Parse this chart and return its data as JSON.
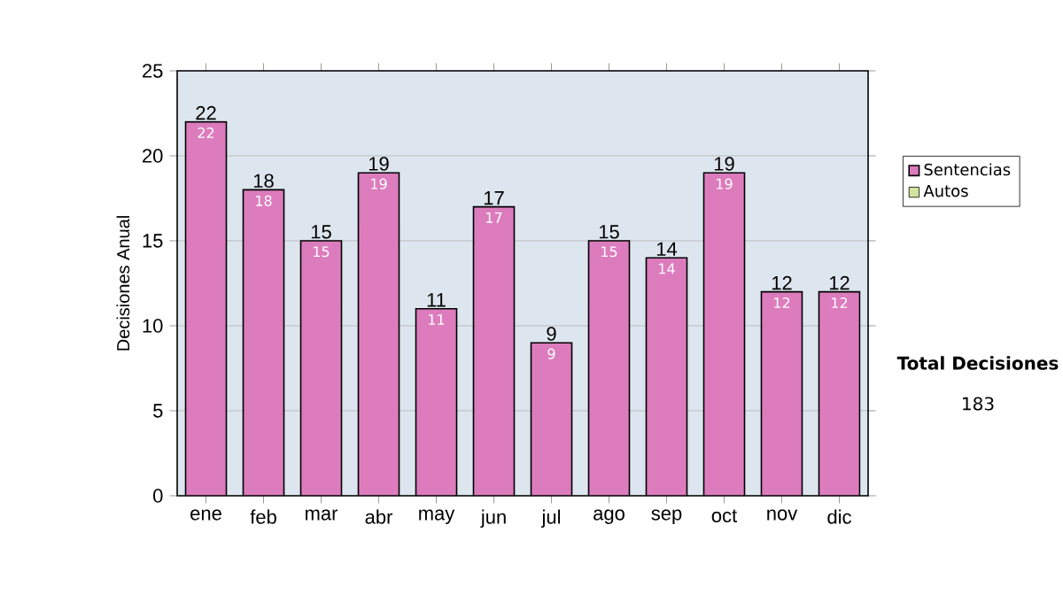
{
  "chart_data": {
    "type": "bar",
    "ylabel": "Decisiones Anual",
    "categories": [
      "ene",
      "feb",
      "mar",
      "abr",
      "may",
      "jun",
      "jul",
      "ago",
      "sep",
      "oct",
      "nov",
      "dic"
    ],
    "series": [
      {
        "name": "Sentencias",
        "color": "#dc7cbd",
        "values": [
          22,
          18,
          15,
          19,
          11,
          17,
          9,
          15,
          14,
          19,
          12,
          12
        ]
      },
      {
        "name": "Autos",
        "color": "#d2e3a0",
        "values": [
          null,
          null,
          null,
          null,
          null,
          null,
          null,
          null,
          null,
          null,
          null,
          null
        ]
      }
    ],
    "ylim": [
      0,
      25
    ],
    "yticks": [
      0,
      5,
      10,
      15,
      20,
      25
    ],
    "grid": "y",
    "legend": "right",
    "data_labels": true,
    "annotations": [
      "Total Decisiones",
      "183",
      {
        "text": "22",
        "x": "ene",
        "y": 22
      },
      {
        "text": "18",
        "x": "feb",
        "y": 18
      },
      {
        "text": "15",
        "x": "mar",
        "y": 15
      },
      {
        "text": "19",
        "x": "abr",
        "y": 19
      },
      {
        "text": "11",
        "x": "may",
        "y": 11
      },
      {
        "text": "17",
        "x": "jun",
        "y": 17
      },
      {
        "text": "9",
        "x": "jul",
        "y": 9
      },
      {
        "text": "15",
        "x": "ago",
        "y": 15
      },
      {
        "text": "14",
        "x": "sep",
        "y": 14
      },
      {
        "text": "19",
        "x": "oct",
        "y": 19
      },
      {
        "text": "12",
        "x": "nov",
        "y": 12
      },
      {
        "text": "12",
        "x": "dic",
        "y": 12
      }
    ]
  }
}
